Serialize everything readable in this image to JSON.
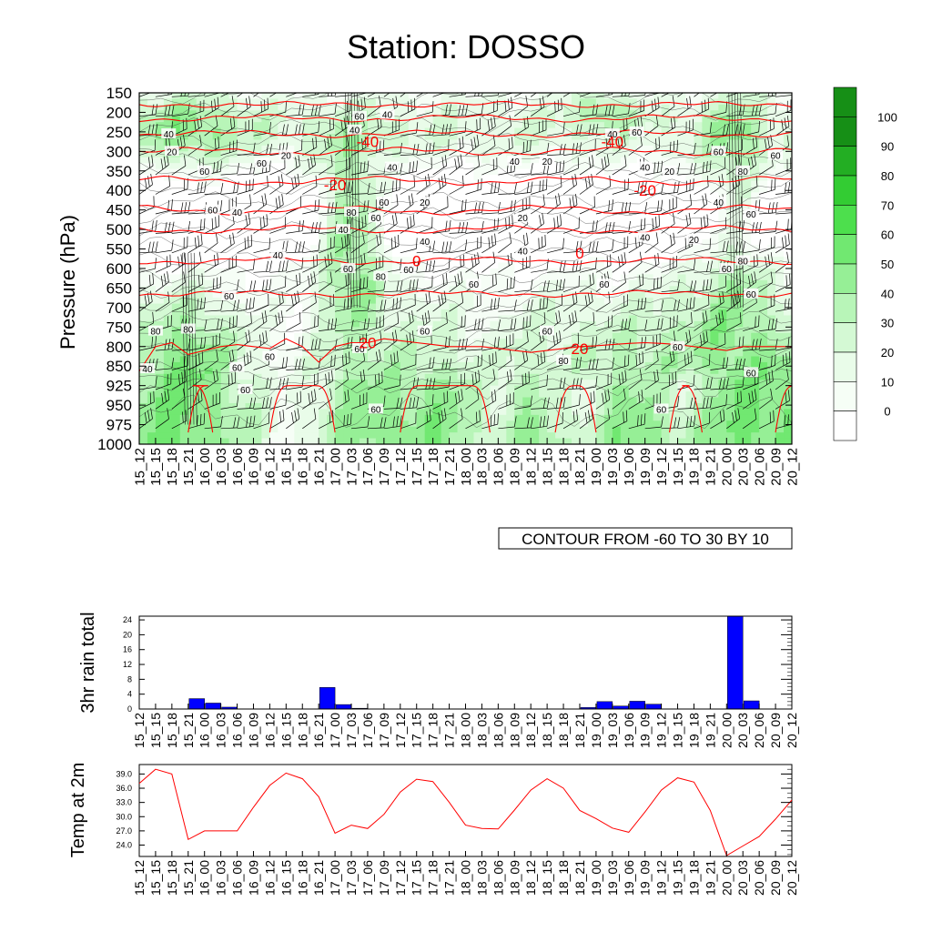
{
  "title": "Station: DOSSO",
  "time_labels": [
    "15_12",
    "15_15",
    "15_18",
    "15_21",
    "16_00",
    "16_03",
    "16_06",
    "16_09",
    "16_12",
    "16_15",
    "16_18",
    "16_21",
    "17_00",
    "17_03",
    "17_06",
    "17_09",
    "17_12",
    "17_15",
    "17_18",
    "17_21",
    "18_00",
    "18_03",
    "18_06",
    "18_09",
    "18_12",
    "18_15",
    "18_18",
    "18_21",
    "19_00",
    "19_03",
    "19_06",
    "19_09",
    "19_12",
    "19_15",
    "19_18",
    "19_21",
    "20_00",
    "20_03",
    "20_06",
    "20_09",
    "20_12"
  ],
  "colors": {
    "rh_levels": [
      "#ffffff",
      "#f6fef6",
      "#e9fce9",
      "#d4f9d4",
      "#b8f5b8",
      "#96ef96",
      "#71e871",
      "#4ddf4d",
      "#33cc33",
      "#23ae23",
      "#168f16"
    ],
    "temp_contour": "#ff0000",
    "rain_bar": "#0000ff",
    "temp_line": "#ff0000"
  },
  "chart_data": [
    {
      "type": "heatmap",
      "name": "pressure-time cross section",
      "ylabel": "Pressure (hPa)",
      "y_ticks": [
        150,
        200,
        250,
        300,
        350,
        400,
        450,
        500,
        550,
        600,
        650,
        700,
        750,
        800,
        850,
        925,
        950,
        975,
        1000
      ],
      "annotation": "CONTOUR FROM -60 TO 30 BY 10",
      "colorbar_ticks": [
        "100",
        "90",
        "80",
        "70",
        "60",
        "50",
        "40",
        "30",
        "20",
        "10",
        "0"
      ],
      "rh_contour_labels": [
        {
          "t": 2,
          "p": 300,
          "v": "20"
        },
        {
          "t": 1.8,
          "p": 255,
          "v": "40"
        },
        {
          "t": 4,
          "p": 350,
          "v": "60"
        },
        {
          "t": 4.5,
          "p": 450,
          "v": "60"
        },
        {
          "t": 6,
          "p": 455,
          "v": "40"
        },
        {
          "t": 7.5,
          "p": 330,
          "v": "60"
        },
        {
          "t": 9,
          "p": 310,
          "v": "20"
        },
        {
          "t": 13.5,
          "p": 210,
          "v": "60"
        },
        {
          "t": 15.2,
          "p": 205,
          "v": "40"
        },
        {
          "t": 13.2,
          "p": 245,
          "v": "40"
        },
        {
          "t": 15.5,
          "p": 340,
          "v": "40"
        },
        {
          "t": 13,
          "p": 455,
          "v": "80"
        },
        {
          "t": 14.5,
          "p": 470,
          "v": "60"
        },
        {
          "t": 15,
          "p": 430,
          "v": "60"
        },
        {
          "t": 12.5,
          "p": 500,
          "v": "40"
        },
        {
          "t": 12.8,
          "p": 600,
          "v": "60"
        },
        {
          "t": 14.8,
          "p": 620,
          "v": "80"
        },
        {
          "t": 16.5,
          "p": 602,
          "v": "60"
        },
        {
          "t": 17.5,
          "p": 530,
          "v": "40"
        },
        {
          "t": 17.5,
          "p": 430,
          "v": "20"
        },
        {
          "t": 8.5,
          "p": 565,
          "v": "40"
        },
        {
          "t": 5.5,
          "p": 670,
          "v": "60"
        },
        {
          "t": 3,
          "p": 755,
          "v": "80"
        },
        {
          "t": 1,
          "p": 760,
          "v": "80"
        },
        {
          "t": 0.5,
          "p": 860,
          "v": "40"
        },
        {
          "t": 6,
          "p": 855,
          "v": "60"
        },
        {
          "t": 8,
          "p": 825,
          "v": "60"
        },
        {
          "t": 6.5,
          "p": 930,
          "v": "60"
        },
        {
          "t": 13.5,
          "p": 805,
          "v": "60"
        },
        {
          "t": 14.5,
          "p": 955,
          "v": "60"
        },
        {
          "t": 17.5,
          "p": 760,
          "v": "60"
        },
        {
          "t": 20.5,
          "p": 640,
          "v": "60"
        },
        {
          "t": 23,
          "p": 325,
          "v": "40"
        },
        {
          "t": 25,
          "p": 325,
          "v": "20"
        },
        {
          "t": 23.5,
          "p": 470,
          "v": "20"
        },
        {
          "t": 23.5,
          "p": 555,
          "v": "40"
        },
        {
          "t": 25,
          "p": 760,
          "v": "60"
        },
        {
          "t": 26,
          "p": 835,
          "v": "80"
        },
        {
          "t": 28.5,
          "p": 640,
          "v": "60"
        },
        {
          "t": 29,
          "p": 255,
          "v": "40"
        },
        {
          "t": 30.5,
          "p": 250,
          "v": "60"
        },
        {
          "t": 31,
          "p": 340,
          "v": "40"
        },
        {
          "t": 32.5,
          "p": 350,
          "v": "20"
        },
        {
          "t": 31,
          "p": 520,
          "v": "40"
        },
        {
          "t": 33,
          "p": 800,
          "v": "60"
        },
        {
          "t": 34,
          "p": 525,
          "v": "20"
        },
        {
          "t": 35.5,
          "p": 300,
          "v": "60"
        },
        {
          "t": 37,
          "p": 350,
          "v": "80"
        },
        {
          "t": 39,
          "p": 310,
          "v": "60"
        },
        {
          "t": 35.5,
          "p": 430,
          "v": "40"
        },
        {
          "t": 37.5,
          "p": 460,
          "v": "60"
        },
        {
          "t": 36,
          "p": 600,
          "v": "60"
        },
        {
          "t": 37,
          "p": 580,
          "v": "80"
        },
        {
          "t": 37.5,
          "p": 665,
          "v": "60"
        },
        {
          "t": 37.5,
          "p": 875,
          "v": "60"
        },
        {
          "t": 32,
          "p": 955,
          "v": "60"
        }
      ],
      "temp_contour_labels": [
        {
          "t": 12,
          "p": 385,
          "v": "-20"
        },
        {
          "t": 14,
          "p": 275,
          "v": "-40"
        },
        {
          "t": 29,
          "p": 275,
          "v": "-40"
        },
        {
          "t": 31,
          "p": 400,
          "v": "-20"
        },
        {
          "t": 17,
          "p": 580,
          "v": "0"
        },
        {
          "t": 27,
          "p": 560,
          "v": "0"
        },
        {
          "t": 14,
          "p": 790,
          "v": "20"
        },
        {
          "t": 27,
          "p": 805,
          "v": "20"
        }
      ]
    },
    {
      "type": "bar",
      "name": "3hr rain",
      "ylabel": "3hr rain total",
      "ylim": [
        0,
        25
      ],
      "y_ticks": [
        0,
        4,
        8,
        12,
        16,
        20,
        24
      ],
      "values": [
        0,
        0,
        0,
        2.8,
        1.6,
        0.5,
        0,
        0,
        0,
        0,
        0,
        5.8,
        1.2,
        0.2,
        0,
        0,
        0,
        0,
        0,
        0,
        0,
        0,
        0,
        0,
        0,
        0,
        0,
        0.4,
        2.0,
        0.8,
        2.1,
        1.3,
        0,
        0,
        0,
        0,
        25,
        2.2,
        0,
        0,
        0
      ]
    },
    {
      "type": "line",
      "name": "2m temperature",
      "ylabel": "Temp at 2m",
      "ylim": [
        21.6,
        41.0
      ],
      "y_ticks": [
        "24.0",
        "27.0",
        "30.0",
        "33.0",
        "36.0",
        "39.0"
      ],
      "values": [
        37.0,
        40.0,
        39.0,
        25.2,
        27.0,
        27.0,
        27.0,
        32.0,
        36.6,
        39.2,
        38.0,
        34.2,
        26.5,
        28.2,
        27.5,
        30.5,
        35.2,
        37.9,
        37.4,
        33.0,
        28.2,
        27.5,
        27.4,
        31.4,
        35.6,
        38.0,
        36.0,
        31.3,
        29.6,
        27.6,
        26.7,
        31.0,
        35.6,
        38.2,
        37.3,
        31.3,
        21.8,
        23.8,
        25.8,
        29.5,
        33.5
      ]
    }
  ]
}
